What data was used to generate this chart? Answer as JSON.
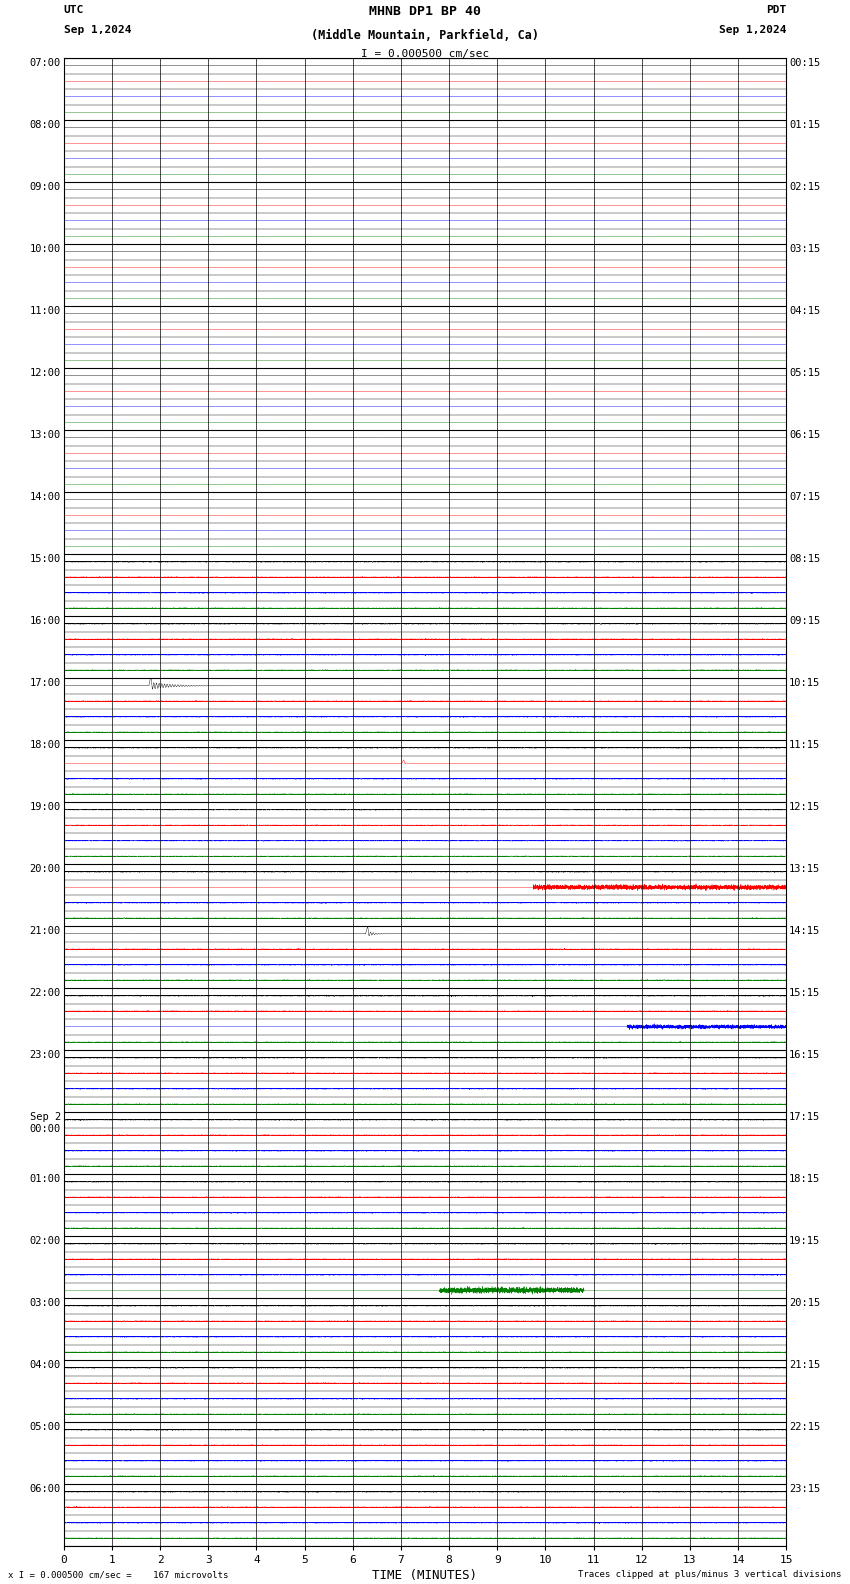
{
  "title_line1": "MHNB DP1 BP 40",
  "title_line2": "(Middle Mountain, Parkfield, Ca)",
  "scale_label": "I = 0.000500 cm/sec",
  "left_label": "UTC",
  "left_date": "Sep 1,2024",
  "right_label": "PDT",
  "right_date": "Sep 1,2024",
  "xlabel": "TIME (MINUTES)",
  "bottom_left": "x I = 0.000500 cm/sec =    167 microvolts",
  "bottom_right": "Traces clipped at plus/minus 3 vertical divisions",
  "num_hour_blocks": 24,
  "minutes_per_row": 15,
  "x_ticks": [
    0,
    1,
    2,
    3,
    4,
    5,
    6,
    7,
    8,
    9,
    10,
    11,
    12,
    13,
    14,
    15
  ],
  "left_times": [
    "07:00",
    "08:00",
    "09:00",
    "10:00",
    "11:00",
    "12:00",
    "13:00",
    "14:00",
    "15:00",
    "16:00",
    "17:00",
    "18:00",
    "19:00",
    "20:00",
    "21:00",
    "22:00",
    "23:00",
    "Sep 2\n00:00",
    "01:00",
    "02:00",
    "03:00",
    "04:00",
    "05:00",
    "06:00"
  ],
  "right_times": [
    "00:15",
    "01:15",
    "02:15",
    "03:15",
    "04:15",
    "05:15",
    "06:15",
    "07:15",
    "08:15",
    "09:15",
    "10:15",
    "11:15",
    "12:15",
    "13:15",
    "14:15",
    "15:15",
    "16:15",
    "17:15",
    "18:15",
    "19:15",
    "20:15",
    "21:15",
    "22:15",
    "23:15"
  ],
  "bg_color": "#ffffff",
  "trace_colors": [
    "#ff0000",
    "#0000ff",
    "#008000",
    "#000000"
  ],
  "fs": 40,
  "quiet_amp": 0.006,
  "active_amp": 0.06
}
